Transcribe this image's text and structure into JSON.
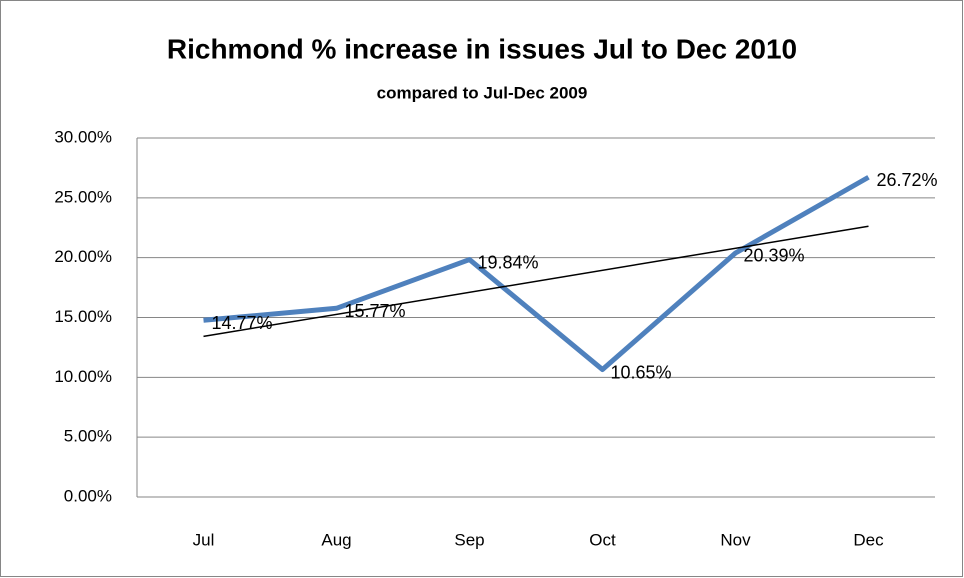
{
  "chart_data": {
    "type": "line",
    "title": "Richmond  % increase in issues Jul to Dec 2010",
    "subtitle": "compared to Jul-Dec 2009",
    "categories": [
      "Jul",
      "Aug",
      "Sep",
      "Oct",
      "Nov",
      "Dec"
    ],
    "series": [
      {
        "name": "Richmond",
        "color": "#4f81bd",
        "values": [
          14.77,
          15.77,
          19.84,
          10.65,
          20.39,
          26.72
        ],
        "value_labels": [
          "14.77%",
          "15.77%",
          "19.84%",
          "10.65%",
          "20.39%",
          "26.72%"
        ]
      }
    ],
    "trendline": "linear",
    "trendline_color": "#000000",
    "ylim": [
      0,
      30
    ],
    "yticks": [
      {
        "value": 0,
        "label": "0.00%"
      },
      {
        "value": 5,
        "label": "5.00%"
      },
      {
        "value": 10,
        "label": "10.00%"
      },
      {
        "value": 15,
        "label": "15.00%"
      },
      {
        "value": 20,
        "label": "20.00%"
      },
      {
        "value": 25,
        "label": "25.00%"
      },
      {
        "value": 30,
        "label": "30.00%"
      }
    ],
    "grid": true
  }
}
